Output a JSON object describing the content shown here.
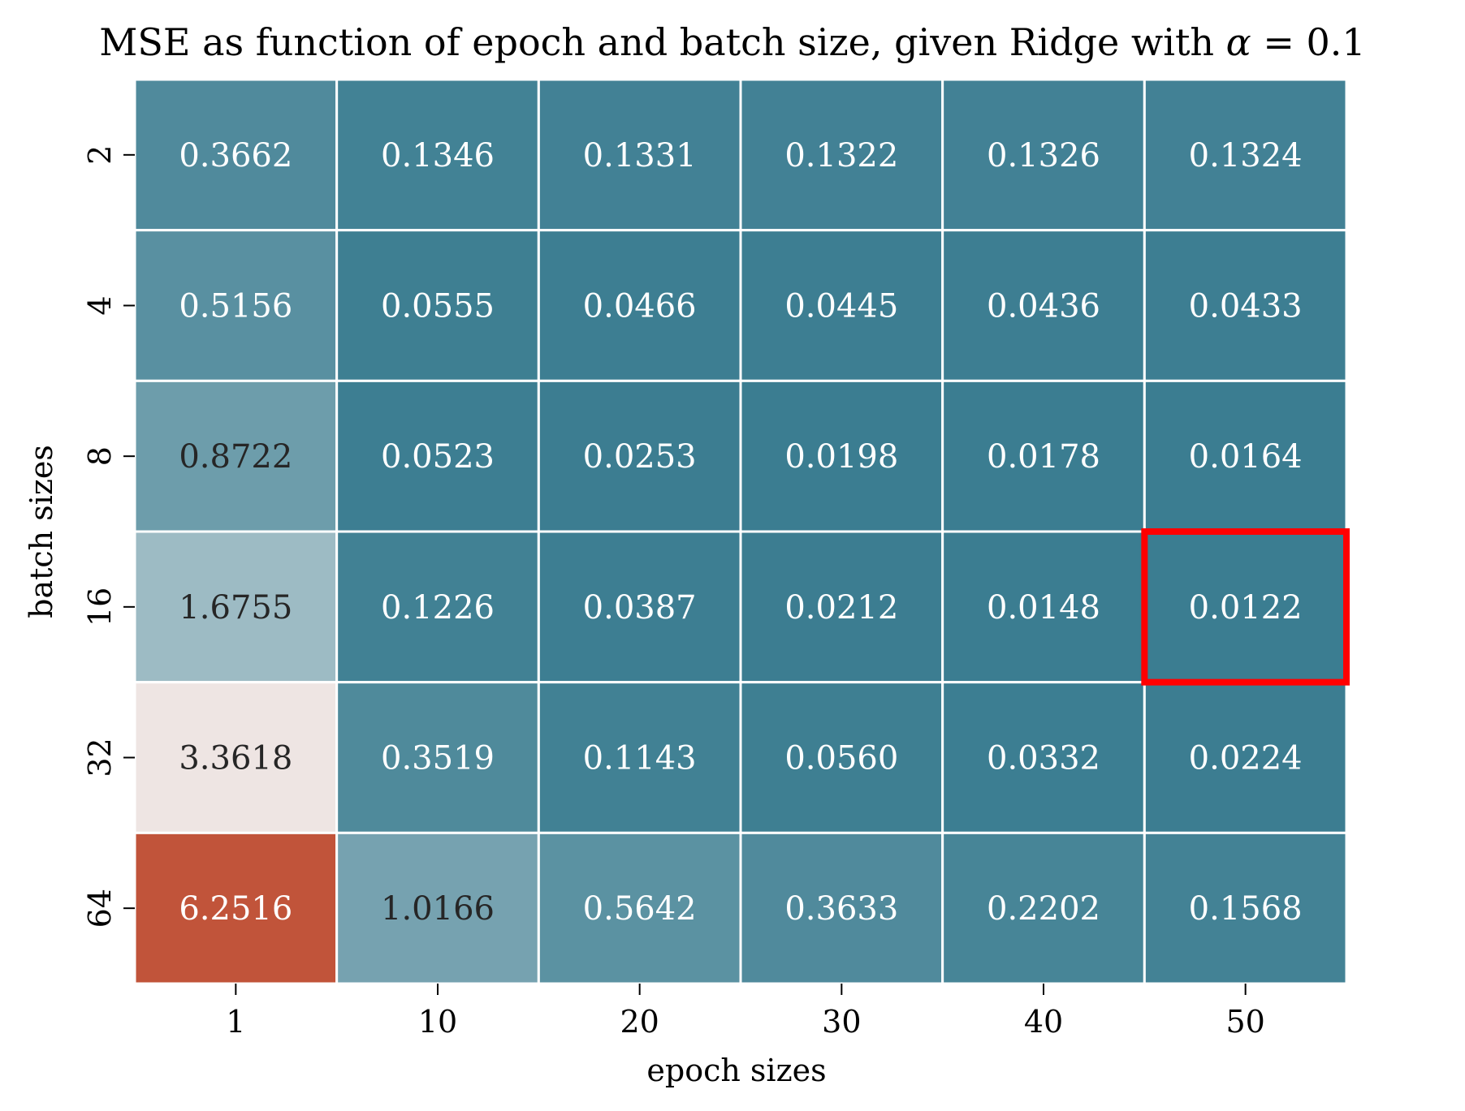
{
  "chart_data": {
    "type": "heatmap",
    "title_prefix": "MSE as function of epoch and batch size, given Ridge with ",
    "title_symbol": "α",
    "title_suffix": " = 0.1",
    "xlabel": "epoch sizes",
    "ylabel": "batch sizes",
    "x_categories": [
      "1",
      "10",
      "20",
      "30",
      "40",
      "50"
    ],
    "y_categories": [
      "2",
      "4",
      "8",
      "16",
      "32",
      "64"
    ],
    "values": [
      [
        0.3662,
        0.1346,
        0.1331,
        0.1322,
        0.1326,
        0.1324
      ],
      [
        0.5156,
        0.0555,
        0.0466,
        0.0445,
        0.0436,
        0.0433
      ],
      [
        0.8722,
        0.0523,
        0.0253,
        0.0198,
        0.0178,
        0.0164
      ],
      [
        1.6755,
        0.1226,
        0.0387,
        0.0212,
        0.0148,
        0.0122
      ],
      [
        3.3618,
        0.3519,
        0.1143,
        0.056,
        0.0332,
        0.0224
      ],
      [
        6.2516,
        1.0166,
        0.5642,
        0.3633,
        0.2202,
        0.1568
      ]
    ],
    "highlight": {
      "row": 3,
      "col": 5
    },
    "colormap": {
      "low": "#3b7d91",
      "mid": "#f2f1f1",
      "high": "#c1543a",
      "center_value": 3.13
    },
    "grid_color": "#ffffff",
    "highlight_color": "#ff0000",
    "text_color_dark": "#262626",
    "text_color_light": "#ffffff"
  }
}
